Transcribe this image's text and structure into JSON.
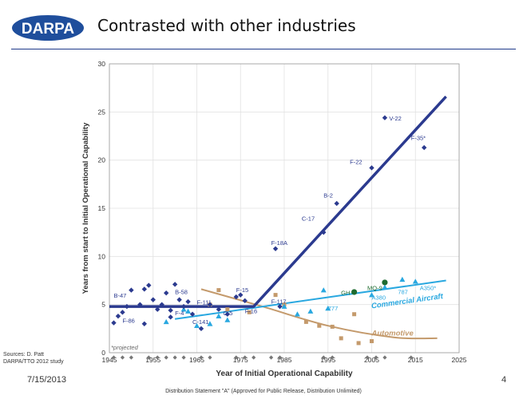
{
  "slide": {
    "logo_text": "DARPA",
    "title": "Contrasted with other industries",
    "sources_line1": "Sources: D. Patt",
    "sources_line2": "DARPA/TTO 2012 study",
    "date": "7/15/2013",
    "page_number": "4",
    "distribution": "Distribution Statement \"A\" (Approved for Public Release, Distribution Unlimited)"
  },
  "colors": {
    "aircraft": "#2b3a8f",
    "commercial": "#29a8e0",
    "automotive": "#c49a6c",
    "projected": "#777777",
    "green": "#1e6b2f",
    "logo_bg": "#1f4e9c"
  },
  "chart_data": {
    "type": "scatter",
    "xlabel": "Year of Initial Operational Capability",
    "ylabel": "Years from start to Initial Operational Capability",
    "xlim": [
      1945,
      2025
    ],
    "ylim": [
      0,
      30
    ],
    "xticks": [
      "1945",
      "1955",
      "1965",
      "1975",
      "1985",
      "1995",
      "2005",
      "2015",
      "2025"
    ],
    "yticks": [
      "0",
      "5",
      "10",
      "15",
      "20",
      "25",
      "30"
    ],
    "grid": true,
    "note": "*projected",
    "series": [
      {
        "key": "military",
        "points": [
          [
            1946,
            3.1
          ],
          [
            1947,
            3.8
          ],
          [
            1948,
            4.2
          ],
          [
            1949,
            4.8
          ],
          [
            1950,
            6.5
          ],
          [
            1952,
            5.0
          ],
          [
            1953,
            3.0
          ],
          [
            1953,
            6.6
          ],
          [
            1954,
            7.0
          ],
          [
            1955,
            5.5
          ],
          [
            1956,
            4.5
          ],
          [
            1957,
            5.0
          ],
          [
            1958,
            6.2
          ],
          [
            1959,
            3.7
          ],
          [
            1959,
            4.4
          ],
          [
            1960,
            7.1
          ],
          [
            1961,
            5.5
          ],
          [
            1962,
            4.8
          ],
          [
            1963,
            5.3
          ],
          [
            1964,
            4.0
          ],
          [
            1966,
            2.5
          ],
          [
            1968,
            5.0
          ],
          [
            1970,
            4.5
          ],
          [
            1972,
            4.0
          ],
          [
            1974,
            5.8
          ],
          [
            1975,
            6.0
          ],
          [
            1976,
            5.4
          ],
          [
            1983,
            10.8
          ],
          [
            1984,
            4.8
          ],
          [
            1994,
            12.5
          ],
          [
            1997,
            15.5
          ],
          [
            2005,
            19.2
          ],
          [
            2008,
            24.4
          ],
          [
            2017,
            21.3
          ]
        ]
      },
      {
        "key": "commercial",
        "points": [
          [
            1958,
            3.2
          ],
          [
            1962,
            4.5
          ],
          [
            1963,
            4.3
          ],
          [
            1965,
            2.8
          ],
          [
            1968,
            3.0
          ],
          [
            1970,
            3.8
          ],
          [
            1972,
            3.4
          ],
          [
            1985,
            4.8
          ],
          [
            1988,
            4.0
          ],
          [
            1991,
            4.3
          ],
          [
            1994,
            6.5
          ],
          [
            1995,
            4.6
          ],
          [
            2005,
            6.0
          ],
          [
            2008,
            6.8
          ],
          [
            2012,
            7.6
          ],
          [
            2015,
            7.4
          ]
        ]
      },
      {
        "key": "automotive",
        "points": [
          [
            1968,
            5.0
          ],
          [
            1970,
            6.5
          ],
          [
            1972,
            4.5
          ],
          [
            1977,
            4.2
          ],
          [
            1983,
            6.0
          ],
          [
            1985,
            5.0
          ],
          [
            1990,
            3.2
          ],
          [
            1993,
            2.8
          ],
          [
            1996,
            2.7
          ],
          [
            1998,
            1.5
          ],
          [
            2001,
            4.0
          ],
          [
            2002,
            1.0
          ],
          [
            2005,
            1.2
          ]
        ]
      },
      {
        "key": "green",
        "points": [
          [
            2001,
            6.3
          ],
          [
            2008,
            7.3
          ]
        ]
      },
      {
        "key": "projected",
        "points": [
          [
            1946,
            -0.5
          ],
          [
            1948,
            -0.5
          ],
          [
            1950,
            -0.5
          ],
          [
            1954,
            -0.5
          ],
          [
            1956,
            -0.5
          ],
          [
            1958,
            -0.5
          ],
          [
            1960,
            -0.5
          ],
          [
            1962,
            -0.5
          ],
          [
            1966,
            -0.5
          ],
          [
            1968,
            -0.5
          ],
          [
            1974,
            -0.5
          ],
          [
            1976,
            -0.5
          ],
          [
            1978,
            -0.5
          ],
          [
            1982,
            -0.5
          ],
          [
            1984,
            -0.5
          ],
          [
            1994,
            -0.5
          ],
          [
            1996,
            -0.5
          ],
          [
            2004,
            -0.5
          ],
          [
            2006,
            -0.5
          ],
          [
            2008,
            -0.5
          ],
          [
            2014,
            -0.5
          ]
        ]
      }
    ],
    "trends": {
      "military": [
        [
          1945,
          4.8
        ],
        [
          1978,
          4.8
        ],
        [
          2022,
          26.6
        ]
      ],
      "commercial": [
        [
          1960,
          3.5
        ],
        [
          2022,
          7.5
        ]
      ],
      "automotive": [
        [
          1966,
          6.6
        ],
        [
          1980,
          4.8
        ],
        [
          1995,
          2.8
        ],
        [
          2010,
          1.6
        ],
        [
          2020,
          1.5
        ]
      ]
    },
    "annotations": [
      {
        "text": "B-47",
        "x": 1946,
        "y": 5.7,
        "series": "military"
      },
      {
        "text": "F-86",
        "x": 1948,
        "y": 3.1,
        "series": "military"
      },
      {
        "text": "B-58",
        "x": 1960,
        "y": 6.1,
        "series": "military"
      },
      {
        "text": "F-4",
        "x": 1960,
        "y": 3.9,
        "series": "military"
      },
      {
        "text": "F-111",
        "x": 1965,
        "y": 5.0,
        "series": "military"
      },
      {
        "text": "C-141",
        "x": 1964,
        "y": 3.0,
        "series": "military"
      },
      {
        "text": "C-5",
        "x": 1971,
        "y": 3.9,
        "series": "military"
      },
      {
        "text": "F-15",
        "x": 1974,
        "y": 6.3,
        "series": "military"
      },
      {
        "text": "F-16",
        "x": 1976,
        "y": 4.1,
        "series": "military"
      },
      {
        "text": "F-117",
        "x": 1982,
        "y": 5.1,
        "series": "military"
      },
      {
        "text": "F-18A",
        "x": 1982,
        "y": 11.2,
        "series": "military"
      },
      {
        "text": "C-17",
        "x": 1989,
        "y": 13.7,
        "series": "military"
      },
      {
        "text": "B-2",
        "x": 1994,
        "y": 16.1,
        "series": "military"
      },
      {
        "text": "F-22",
        "x": 2000,
        "y": 19.6,
        "series": "military"
      },
      {
        "text": "V-22",
        "x": 2009,
        "y": 24.1,
        "series": "military"
      },
      {
        "text": "F-35*",
        "x": 2014,
        "y": 22.1,
        "series": "military"
      },
      {
        "text": "GH",
        "x": 1998,
        "y": 6.0,
        "series": "green"
      },
      {
        "text": "MQ-9",
        "x": 2004,
        "y": 6.5,
        "series": "green"
      },
      {
        "text": "A380",
        "x": 2005,
        "y": 5.5,
        "series": "commercial"
      },
      {
        "text": "787",
        "x": 2011,
        "y": 6.1,
        "series": "commercial"
      },
      {
        "text": "A350*",
        "x": 2016,
        "y": 6.5,
        "series": "commercial"
      },
      {
        "text": "777",
        "x": 1995,
        "y": 4.4,
        "series": "commercial"
      }
    ],
    "line_labels": {
      "commercial": {
        "text": "Commercial Aircraft",
        "x": 2005,
        "y": 4.6,
        "angle": -8
      },
      "automotive": {
        "text": "Automotive",
        "x": 2005,
        "y": 1.8,
        "angle": 0
      }
    }
  }
}
